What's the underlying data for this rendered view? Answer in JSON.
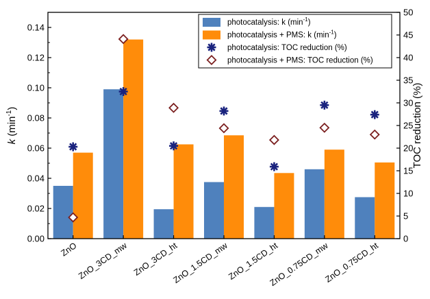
{
  "chart_data": {
    "type": "bar",
    "categories": [
      "ZnO",
      "ZnO_3CD_mw",
      "ZnO_3CD_ht",
      "ZnO_1.5CD_mw",
      "ZnO_1.5CD_ht",
      "ZnO_0.75CD_mw",
      "ZnO_0.75CD_ht"
    ],
    "series": [
      {
        "name": "photocatalysis: k (min",
        "sup": "-1",
        "suffix": ")",
        "kind": "bar",
        "axis": "left",
        "color": "#4f81bd",
        "values": [
          0.035,
          0.099,
          0.0195,
          0.0375,
          0.021,
          0.046,
          0.0275
        ]
      },
      {
        "name": "photocatalysis + PMS: k (min",
        "sup": "-1",
        "suffix": ")",
        "kind": "bar",
        "axis": "left",
        "color": "#ff8c0a",
        "values": [
          0.057,
          0.132,
          0.0625,
          0.0685,
          0.0435,
          0.059,
          0.0505
        ]
      },
      {
        "name": "photocatalysis: TOC reduction (%)",
        "sup": "",
        "suffix": "",
        "kind": "marker",
        "marker": "star",
        "axis": "right",
        "color": "#1a237e",
        "values": [
          20.3,
          32.5,
          20.5,
          28.2,
          15.9,
          29.5,
          27.4
        ]
      },
      {
        "name": "photocatalysis + PMS: TOC reduction (%)",
        "sup": "",
        "suffix": "",
        "kind": "marker",
        "marker": "diamond",
        "axis": "right",
        "color": "#7b1f1f",
        "values": [
          4.7,
          44.1,
          28.9,
          24.4,
          21.8,
          24.5,
          23.0
        ]
      }
    ],
    "ylabel_left": {
      "italic": "k",
      "rest": " (min",
      "sup": "-1",
      "end": ")"
    },
    "ylabel_right": "TOC reduction (%)",
    "ylim_left": [
      0,
      0.15
    ],
    "yticks_left": [
      "0.00",
      "0.02",
      "0.04",
      "0.06",
      "0.08",
      "0.10",
      "0.12",
      "0.14"
    ],
    "ylim_right": [
      0,
      50
    ],
    "yticks_right": [
      "0",
      "5",
      "10",
      "15",
      "20",
      "25",
      "30",
      "35",
      "40",
      "45",
      "50"
    ],
    "legend_position": "top-right",
    "grid": false
  }
}
